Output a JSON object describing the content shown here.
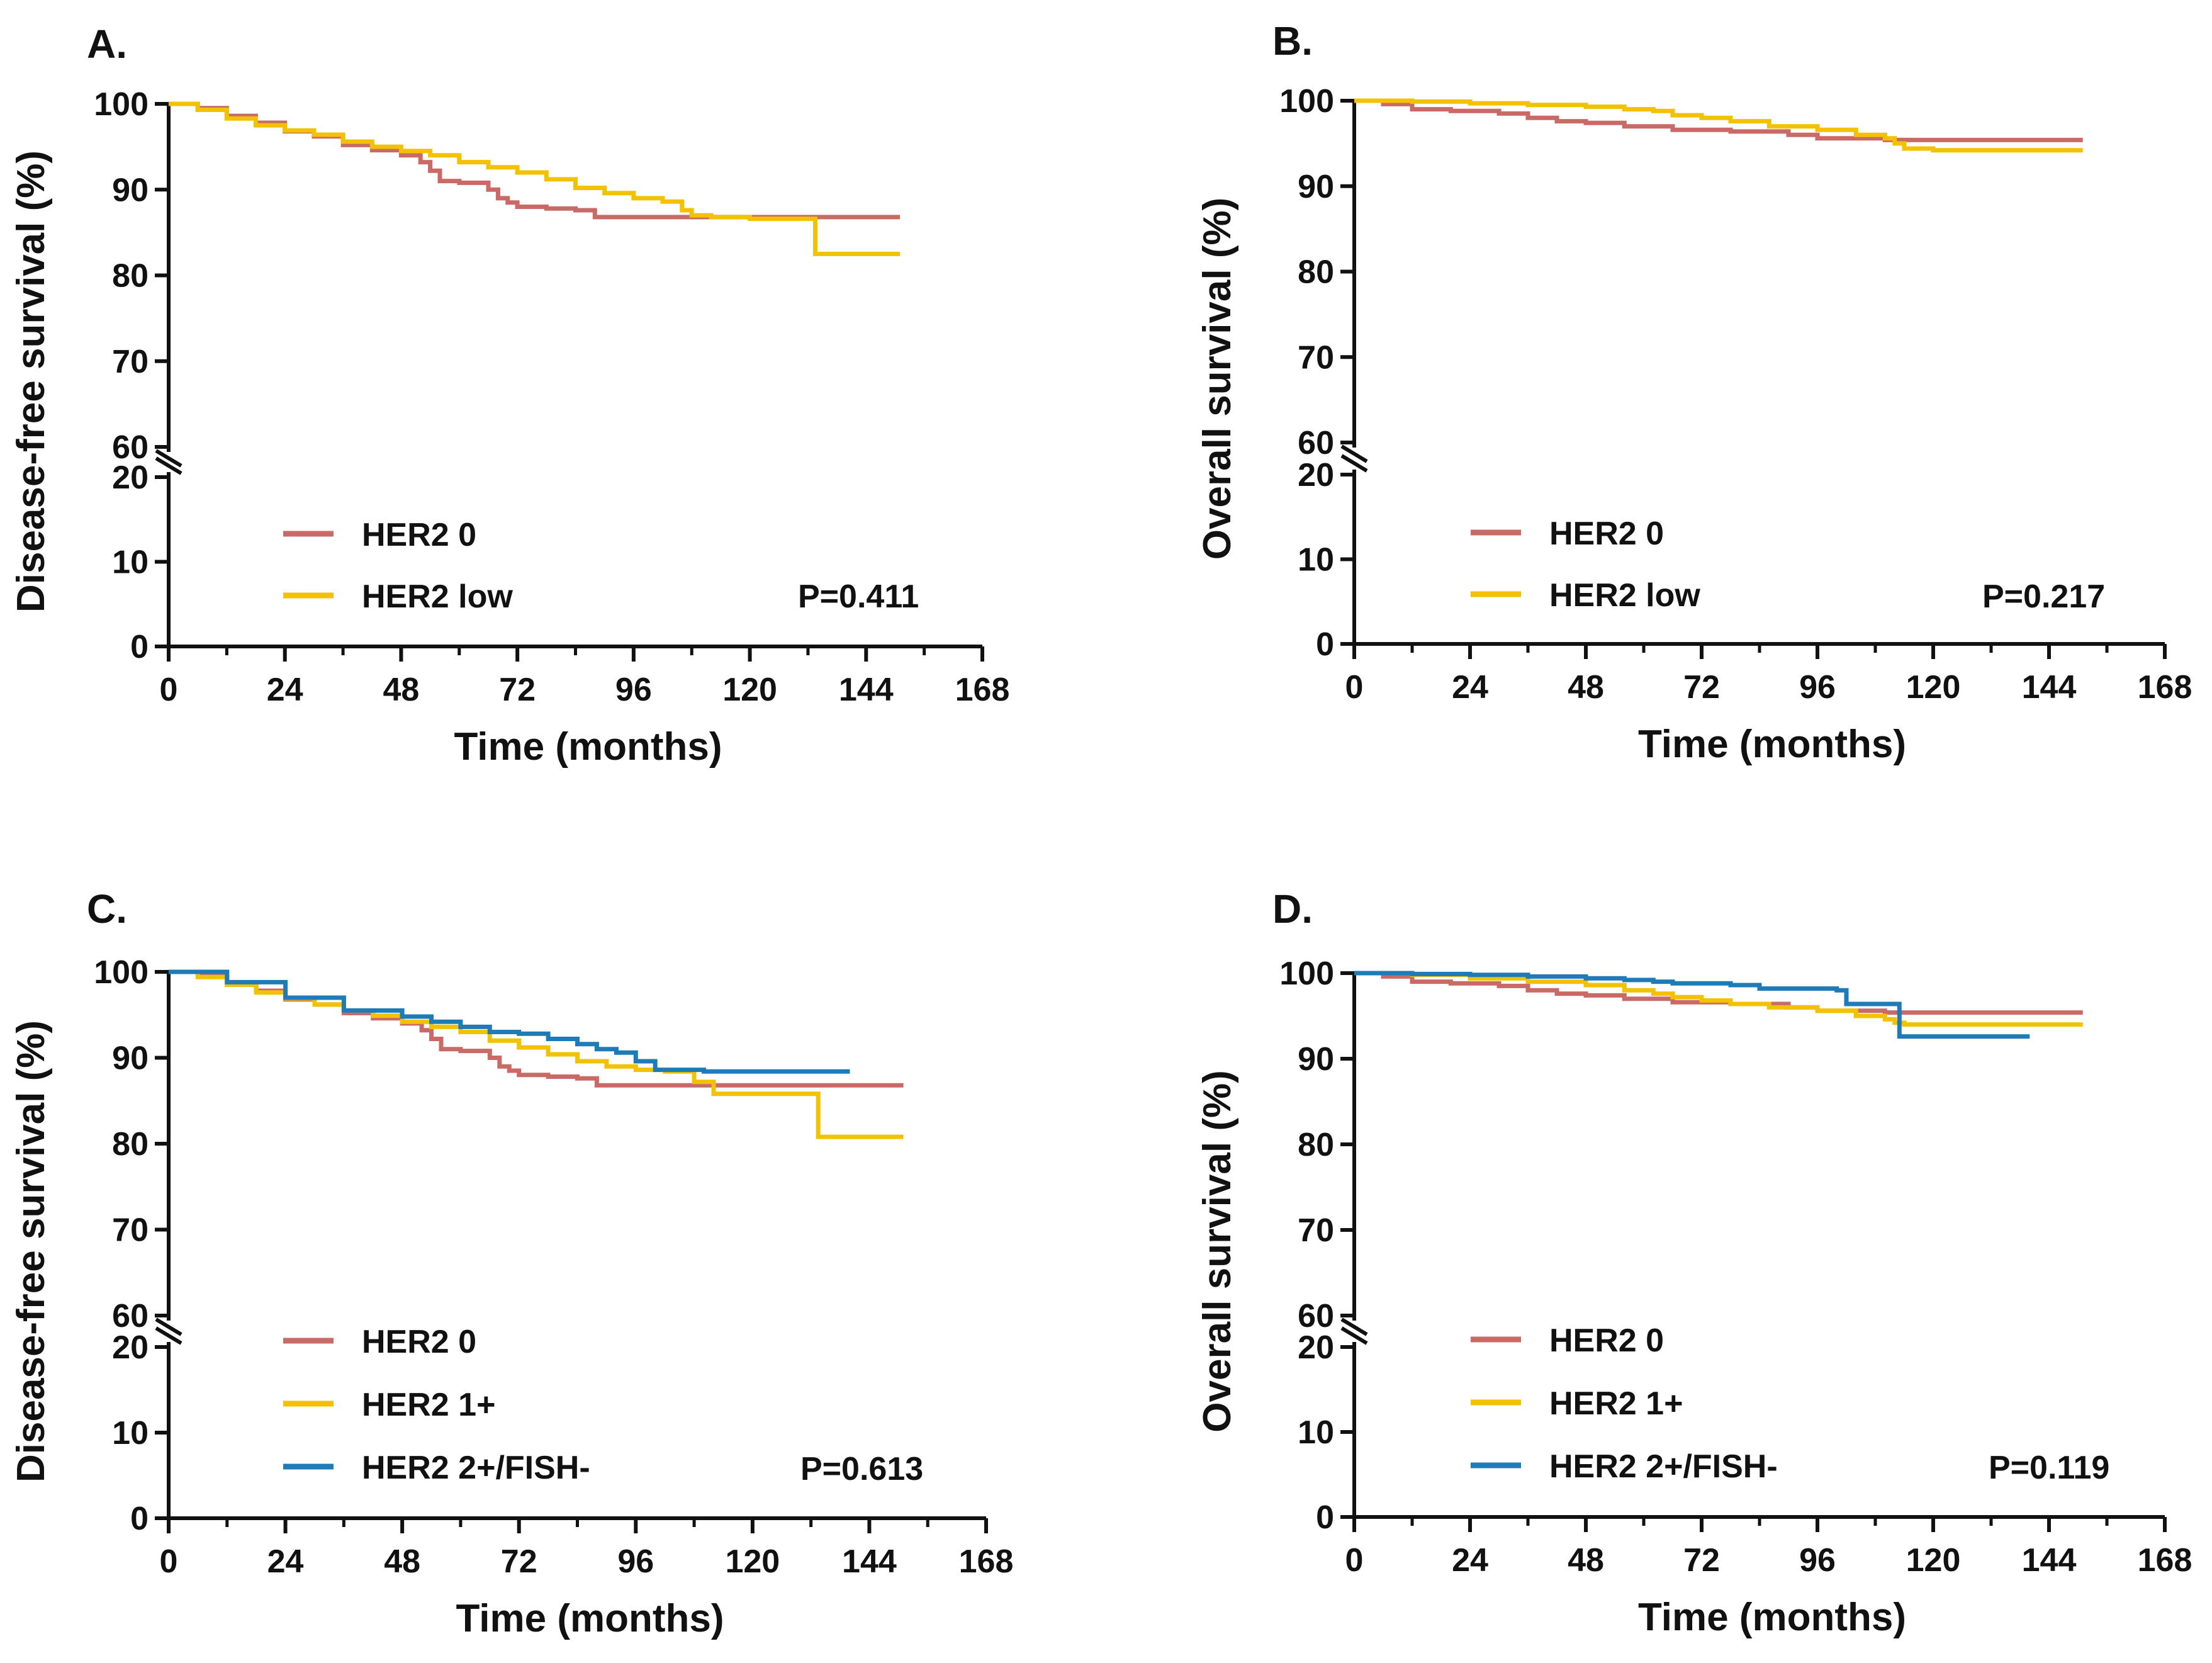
{
  "colors": {
    "her2_0": "#c96a66",
    "her2_low": "#f2c200",
    "her2_1plus": "#f2c200",
    "her2_2plus_fish_neg": "#1f7ab8",
    "axis": "#111111"
  },
  "chart_data": [
    {
      "type": "line",
      "panel": "A.",
      "xlabel": "Time (months)",
      "ylabel": "Disease-free survival (%)",
      "xlim": [
        0,
        168
      ],
      "xticks": [
        "0",
        "24",
        "48",
        "72",
        "96",
        "120",
        "144",
        "168"
      ],
      "ylim_lower": [
        0,
        20
      ],
      "ylim_upper": [
        60,
        100
      ],
      "yticks_lower": [
        "0",
        "10",
        "20"
      ],
      "yticks_upper": [
        "60",
        "70",
        "80",
        "90",
        "100"
      ],
      "pvalue": "P=0.411",
      "series": [
        {
          "name": "HER2 0",
          "color_key": "her2_0",
          "x": [
            0,
            6,
            12,
            18,
            24,
            30,
            36,
            42,
            48,
            52,
            54,
            56,
            60,
            62,
            66,
            68,
            70,
            72,
            78,
            84,
            88,
            90,
            96,
            110,
            120,
            130,
            140,
            151
          ],
          "y": [
            100,
            99.5,
            98.6,
            97.8,
            96.8,
            96.2,
            95.2,
            94.6,
            94.0,
            93.2,
            92.2,
            91.0,
            90.8,
            90.8,
            90.0,
            89.0,
            88.5,
            88.0,
            87.8,
            87.6,
            86.8,
            86.8,
            86.8,
            86.8,
            86.8,
            86.8,
            86.8,
            86.8
          ]
        },
        {
          "name": "HER2 low",
          "color_key": "her2_low",
          "x": [
            0,
            6,
            12,
            18,
            24,
            30,
            36,
            42,
            48,
            54,
            60,
            66,
            72,
            78,
            84,
            90,
            96,
            102,
            106,
            108,
            112,
            120,
            126,
            133,
            133.5,
            140,
            151
          ],
          "y": [
            100,
            99.3,
            98.3,
            97.5,
            96.9,
            96.4,
            95.6,
            95.0,
            94.5,
            94.0,
            93.2,
            92.6,
            92.0,
            91.2,
            90.2,
            89.6,
            89.0,
            88.6,
            87.6,
            87.0,
            86.8,
            86.6,
            86.6,
            86.6,
            82.5,
            82.5,
            82.5
          ]
        }
      ],
      "legend": [
        {
          "label": "HER2 0",
          "color_key": "her2_0"
        },
        {
          "label": "HER2 low",
          "color_key": "her2_low"
        }
      ]
    },
    {
      "type": "line",
      "panel": "B.",
      "xlabel": "Time (months)",
      "ylabel": "Overall survival (%)",
      "xlim": [
        0,
        168
      ],
      "xticks": [
        "0",
        "24",
        "48",
        "72",
        "96",
        "120",
        "144",
        "168"
      ],
      "ylim_lower": [
        0,
        20
      ],
      "ylim_upper": [
        60,
        100
      ],
      "yticks_lower": [
        "0",
        "10",
        "20"
      ],
      "yticks_upper": [
        "60",
        "70",
        "80",
        "90",
        "100"
      ],
      "pvalue": "P=0.217",
      "series": [
        {
          "name": "HER2 0",
          "color_key": "her2_0",
          "x": [
            0,
            6,
            12,
            20,
            30,
            36,
            42,
            48,
            56,
            66,
            78,
            90,
            96,
            110,
            120,
            140,
            151
          ],
          "y": [
            100,
            99.6,
            99.0,
            98.8,
            98.5,
            98.0,
            97.6,
            97.4,
            97.0,
            96.6,
            96.4,
            96.0,
            95.6,
            95.4,
            95.4,
            95.4,
            95.4
          ]
        },
        {
          "name": "HER2 low",
          "color_key": "her2_low",
          "x": [
            0,
            12,
            24,
            36,
            48,
            56,
            62,
            66,
            72,
            78,
            86,
            96,
            104,
            110,
            112,
            114,
            120,
            140,
            151
          ],
          "y": [
            100,
            99.9,
            99.7,
            99.5,
            99.3,
            99.0,
            98.8,
            98.3,
            98.0,
            97.6,
            97.0,
            96.6,
            96.0,
            95.6,
            95.0,
            94.4,
            94.2,
            94.2,
            94.2
          ]
        }
      ],
      "legend": [
        {
          "label": "HER2 0",
          "color_key": "her2_0"
        },
        {
          "label": "HER2 low",
          "color_key": "her2_low"
        }
      ]
    },
    {
      "type": "line",
      "panel": "C.",
      "xlabel": "Time (months)",
      "ylabel": "Disease-free survival (%)",
      "xlim": [
        0,
        168
      ],
      "xticks": [
        "0",
        "24",
        "48",
        "72",
        "96",
        "120",
        "144",
        "168"
      ],
      "ylim_lower": [
        0,
        20
      ],
      "ylim_upper": [
        60,
        100
      ],
      "yticks_lower": [
        "0",
        "10",
        "20"
      ],
      "yticks_upper": [
        "60",
        "70",
        "80",
        "90",
        "100"
      ],
      "pvalue": "P=0.613",
      "series": [
        {
          "name": "HER2 0",
          "color_key": "her2_0",
          "x": [
            0,
            6,
            12,
            18,
            24,
            30,
            36,
            42,
            48,
            52,
            54,
            56,
            60,
            62,
            66,
            68,
            70,
            72,
            78,
            84,
            88,
            90,
            96,
            110,
            120,
            130,
            140,
            151
          ],
          "y": [
            100,
            99.5,
            98.6,
            97.8,
            96.8,
            96.2,
            95.2,
            94.6,
            94.0,
            93.2,
            92.2,
            91.0,
            90.8,
            90.8,
            90.0,
            89.0,
            88.5,
            88.0,
            87.8,
            87.6,
            86.8,
            86.8,
            86.8,
            86.8,
            86.8,
            86.8,
            86.8,
            86.8
          ]
        },
        {
          "name": "HER2 1+",
          "color_key": "her2_1plus",
          "x": [
            0,
            6,
            12,
            18,
            24,
            30,
            36,
            42,
            48,
            54,
            60,
            66,
            72,
            78,
            84,
            90,
            96,
            102,
            108,
            112,
            120,
            126,
            133,
            133.5,
            140,
            151
          ],
          "y": [
            100,
            99.4,
            98.5,
            97.6,
            96.9,
            96.2,
            95.5,
            94.9,
            94.2,
            93.6,
            93.0,
            92.0,
            91.2,
            90.4,
            89.6,
            89.0,
            88.6,
            88.4,
            87.2,
            85.8,
            85.8,
            85.8,
            85.8,
            80.8,
            80.8,
            80.8
          ]
        },
        {
          "name": "HER2 2+/FISH-",
          "color_key": "her2_2plus_fish_neg",
          "x": [
            0,
            12,
            24,
            36,
            48,
            54,
            60,
            66,
            72,
            78,
            84,
            88,
            92,
            96,
            100,
            110,
            120,
            130,
            140
          ],
          "y": [
            100,
            98.8,
            97.0,
            95.5,
            94.8,
            94.2,
            93.6,
            93.0,
            92.8,
            92.2,
            91.6,
            91.0,
            90.6,
            89.6,
            88.6,
            88.4,
            88.4,
            88.4,
            88.4
          ]
        }
      ],
      "legend": [
        {
          "label": "HER2 0",
          "color_key": "her2_0"
        },
        {
          "label": "HER2 1+",
          "color_key": "her2_1plus"
        },
        {
          "label": "HER2 2+/FISH-",
          "color_key": "her2_2plus_fish_neg"
        }
      ]
    },
    {
      "type": "line",
      "panel": "D.",
      "xlabel": "Time (months)",
      "ylabel": "Overall survival (%)",
      "xlim": [
        0,
        168
      ],
      "xticks": [
        "0",
        "24",
        "48",
        "72",
        "96",
        "120",
        "144",
        "168"
      ],
      "ylim_lower": [
        0,
        20
      ],
      "ylim_upper": [
        60,
        100
      ],
      "yticks_lower": [
        "0",
        "10",
        "20"
      ],
      "yticks_upper": [
        "60",
        "70",
        "80",
        "90",
        "100"
      ],
      "pvalue": "P=0.119",
      "series": [
        {
          "name": "HER2 0",
          "color_key": "her2_0",
          "x": [
            0,
            6,
            12,
            20,
            30,
            36,
            42,
            48,
            56,
            66,
            78,
            90,
            96,
            110,
            120,
            140,
            151
          ],
          "y": [
            100,
            99.6,
            99.0,
            98.8,
            98.5,
            98.0,
            97.6,
            97.4,
            97.0,
            96.6,
            96.4,
            96.0,
            95.6,
            95.4,
            95.4,
            95.4,
            95.4
          ]
        },
        {
          "name": "HER2 1+",
          "color_key": "her2_1plus",
          "x": [
            0,
            12,
            24,
            36,
            48,
            56,
            62,
            66,
            72,
            78,
            86,
            96,
            104,
            110,
            112,
            114,
            120,
            140,
            151
          ],
          "y": [
            100,
            99.8,
            99.4,
            99.0,
            98.6,
            98.0,
            97.6,
            97.2,
            96.8,
            96.4,
            96.0,
            95.6,
            95.0,
            94.6,
            94.2,
            94.0,
            94.0,
            94.0,
            94.0
          ]
        },
        {
          "name": "HER2 2+/FISH-",
          "color_key": "her2_2plus_fish_neg",
          "x": [
            0,
            12,
            24,
            36,
            48,
            56,
            62,
            66,
            78,
            84,
            90,
            96,
            100,
            102,
            108,
            112,
            113,
            120,
            130,
            140
          ],
          "y": [
            100,
            99.9,
            99.8,
            99.6,
            99.4,
            99.2,
            99.0,
            98.8,
            98.6,
            98.2,
            98.2,
            98.2,
            98.0,
            96.4,
            96.4,
            96.4,
            92.6,
            92.6,
            92.6,
            92.6
          ]
        }
      ],
      "legend": [
        {
          "label": "HER2 0",
          "color_key": "her2_0"
        },
        {
          "label": "HER2 1+",
          "color_key": "her2_1plus"
        },
        {
          "label": "HER2 2+/FISH-",
          "color_key": "her2_2plus_fish_neg"
        }
      ]
    }
  ]
}
